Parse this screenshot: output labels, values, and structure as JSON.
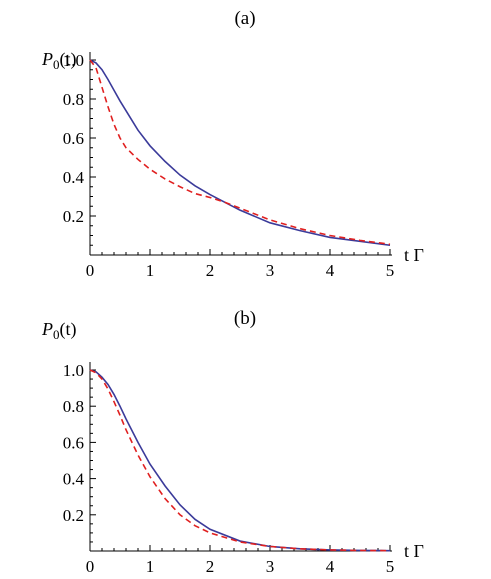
{
  "chart_data": [
    {
      "type": "line",
      "title": "(a)",
      "ylabel_symbol": "P",
      "ylabel_sub": "0",
      "ylabel_arg": "(t)",
      "xlabel": "t Γ",
      "xlim": [
        0,
        5
      ],
      "ylim": [
        0,
        1.0
      ],
      "xticks": [
        "0",
        "1",
        "2",
        "3",
        "4",
        "5"
      ],
      "yticks": [
        "0.2",
        "0.4",
        "0.6",
        "0.8",
        "1.0"
      ],
      "grid": false,
      "series": [
        {
          "style": "solid",
          "color": "#3b3b9a",
          "x": [
            0,
            0.1,
            0.2,
            0.3,
            0.4,
            0.5,
            0.6,
            0.8,
            1.0,
            1.25,
            1.5,
            1.75,
            2.0,
            2.5,
            3.0,
            3.5,
            4.0,
            4.5,
            5.0
          ],
          "y": [
            1.0,
            0.985,
            0.95,
            0.9,
            0.845,
            0.79,
            0.74,
            0.64,
            0.56,
            0.48,
            0.41,
            0.355,
            0.31,
            0.23,
            0.165,
            0.125,
            0.09,
            0.07,
            0.05
          ]
        },
        {
          "style": "dashed",
          "color": "#e02020",
          "x": [
            0,
            0.1,
            0.2,
            0.3,
            0.4,
            0.5,
            0.6,
            0.8,
            1.0,
            1.25,
            1.5,
            1.75,
            2.0,
            2.25,
            2.5,
            3.0,
            3.5,
            4.0,
            4.5,
            5.0
          ],
          "y": [
            1.0,
            0.96,
            0.86,
            0.76,
            0.67,
            0.6,
            0.55,
            0.49,
            0.44,
            0.39,
            0.35,
            0.315,
            0.295,
            0.27,
            0.24,
            0.18,
            0.135,
            0.1,
            0.075,
            0.055
          ]
        }
      ]
    },
    {
      "type": "line",
      "title": "(b)",
      "ylabel_symbol": "P",
      "ylabel_sub": "0",
      "ylabel_arg": "(t)",
      "xlabel": "t Γ",
      "xlim": [
        0,
        5
      ],
      "ylim": [
        0,
        1.0
      ],
      "xticks": [
        "0",
        "1",
        "2",
        "3",
        "4",
        "5"
      ],
      "yticks": [
        "0.2",
        "0.4",
        "0.6",
        "0.8",
        "1.0"
      ],
      "grid": false,
      "series": [
        {
          "style": "solid",
          "color": "#3b3b9a",
          "x": [
            0,
            0.1,
            0.2,
            0.3,
            0.4,
            0.5,
            0.6,
            0.8,
            1.0,
            1.25,
            1.5,
            1.75,
            2.0,
            2.5,
            3.0,
            3.5,
            4.0,
            4.5,
            5.0
          ],
          "y": [
            1.0,
            0.99,
            0.96,
            0.92,
            0.865,
            0.8,
            0.73,
            0.6,
            0.48,
            0.36,
            0.255,
            0.175,
            0.12,
            0.055,
            0.025,
            0.012,
            0.006,
            0.003,
            0.002
          ]
        },
        {
          "style": "dashed",
          "color": "#e02020",
          "x": [
            0,
            0.1,
            0.2,
            0.3,
            0.4,
            0.5,
            0.6,
            0.8,
            1.0,
            1.25,
            1.5,
            1.75,
            2.0,
            2.5,
            3.0,
            3.5,
            4.0,
            4.5,
            5.0
          ],
          "y": [
            1.0,
            0.985,
            0.95,
            0.895,
            0.825,
            0.75,
            0.67,
            0.53,
            0.41,
            0.29,
            0.2,
            0.14,
            0.1,
            0.05,
            0.025,
            0.012,
            0.006,
            0.003,
            0.002
          ]
        }
      ]
    }
  ]
}
